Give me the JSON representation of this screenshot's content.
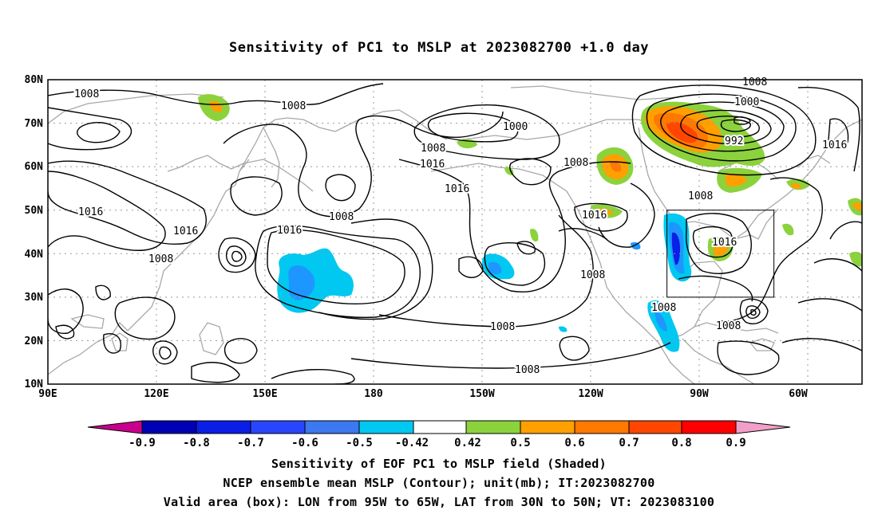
{
  "title": "Sensitivity of PC1 to MSLP at 2023082700 +1.0 day",
  "lat_labels": [
    "80N",
    "70N",
    "60N",
    "50N",
    "40N",
    "30N",
    "20N",
    "10N"
  ],
  "lon_labels": [
    "90E",
    "120E",
    "150E",
    "180",
    "150W",
    "120W",
    "90W",
    "60W"
  ],
  "contour_labels": [
    "1008",
    "1008",
    "1008",
    "1008",
    "1000",
    "1008",
    "1016",
    "1016",
    "1008",
    "1000",
    "992",
    "1016",
    "1008",
    "1016",
    "1016",
    "1016",
    "1016",
    "1008",
    "1008",
    "1016",
    "1008",
    "1008",
    "1008",
    "1008",
    "1016",
    "1008"
  ],
  "colorbar": {
    "labels": [
      "-0.9",
      "-0.8",
      "-0.7",
      "-0.6",
      "-0.5",
      "-0.42",
      "0.42",
      "0.5",
      "0.6",
      "0.7",
      "0.8",
      "0.9"
    ],
    "colors": [
      "#c8008c",
      "#0000b4",
      "#0a1ee6",
      "#2846ff",
      "#3c78f0",
      "#1e96ff",
      "#00c8f0",
      "#ffffff",
      "#8cd23c",
      "#ffa000",
      "#ff7800",
      "#ff4600",
      "#ff0000",
      "#f0a0c8"
    ]
  },
  "captions": {
    "line1": "Sensitivity of EOF PC1 to MSLP field (Shaded)",
    "line2": "NCEP ensemble mean MSLP (Contour); unit(mb); IT:2023082700",
    "line3": "Valid area (box): LON from 95W to 65W, LAT from 30N to 50N; VT: 2023083100"
  }
}
